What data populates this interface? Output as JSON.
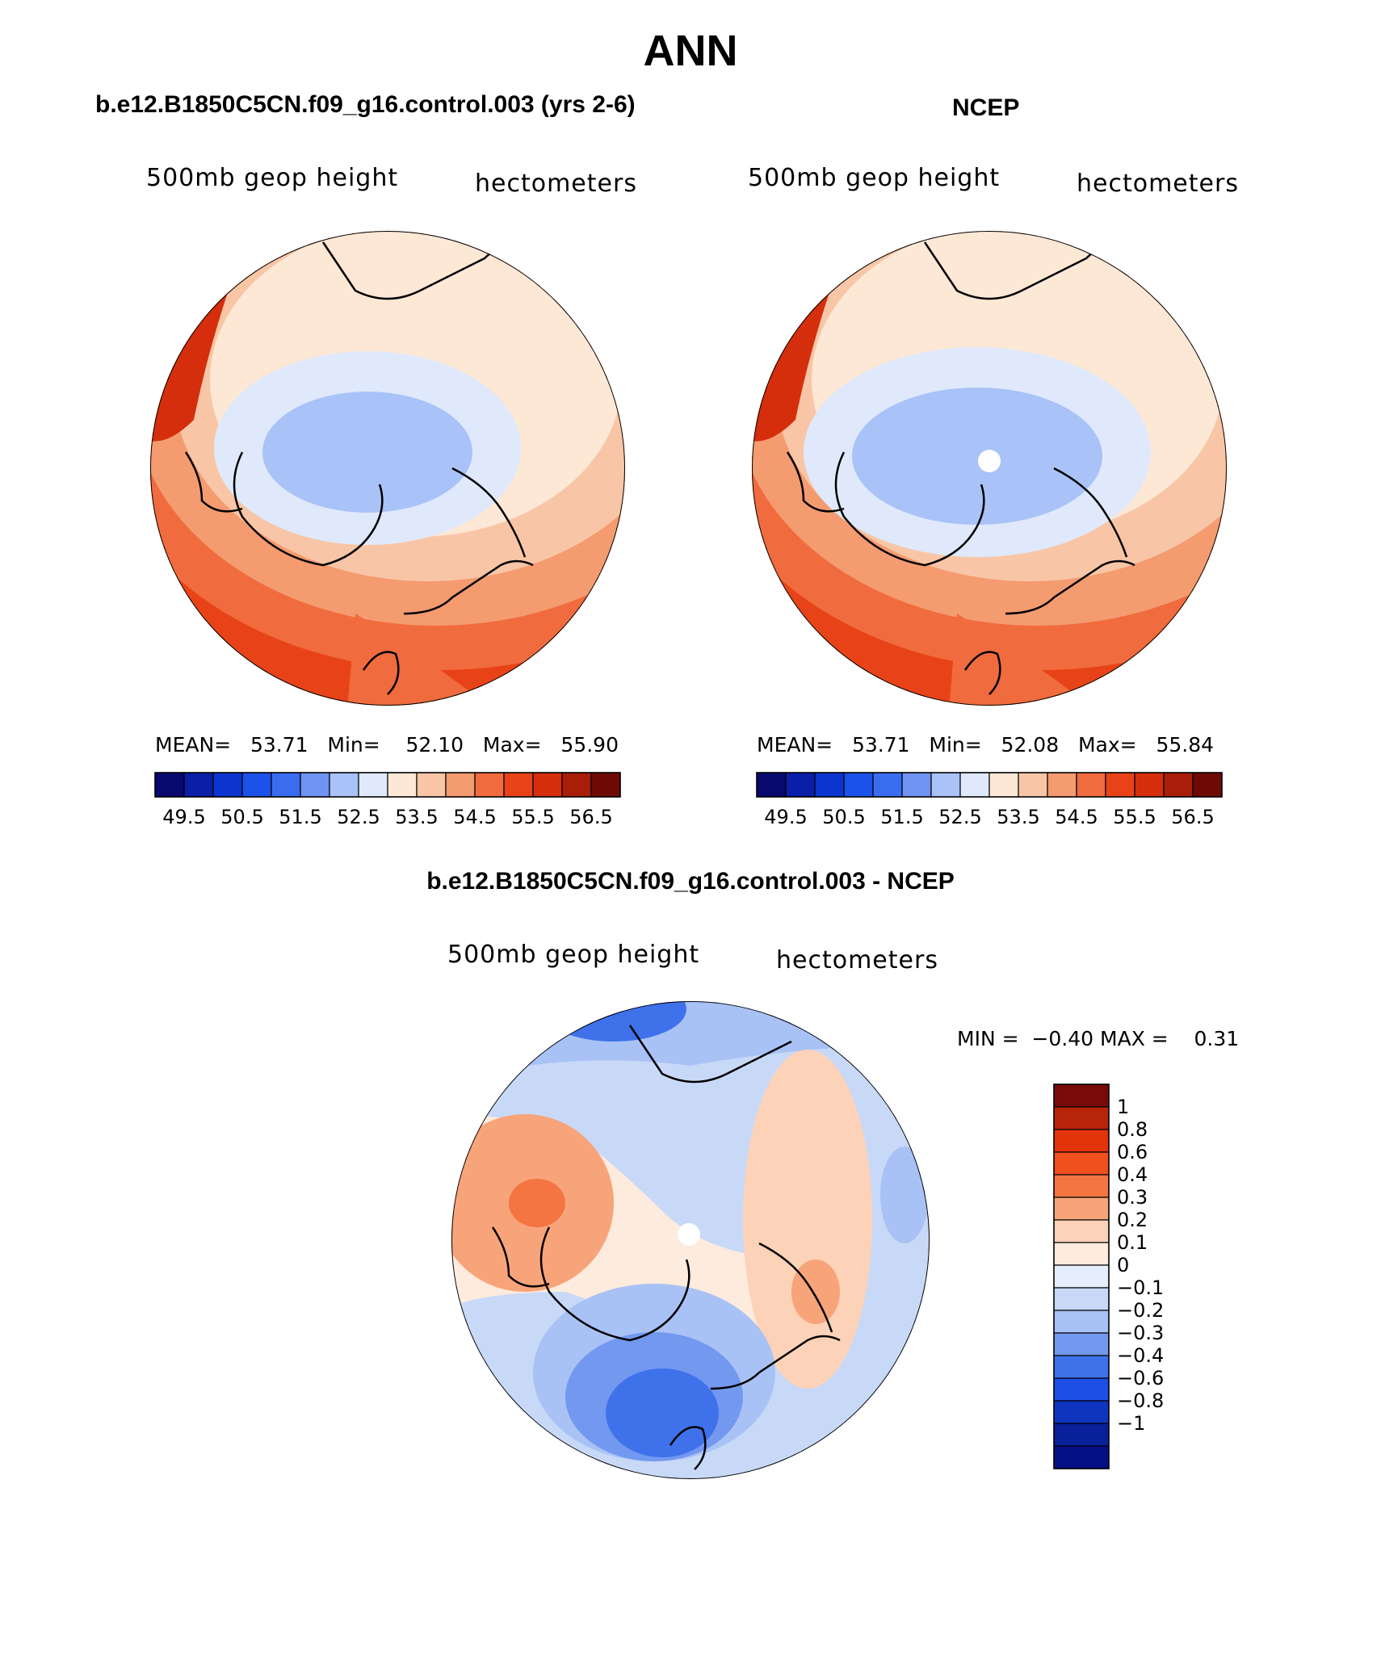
{
  "page_title": "ANN",
  "panels": [
    {
      "title": "b.e12.B1850C5CN.f09_g16.control.003 (yrs 2-6)",
      "left_label": "500mb geop height",
      "right_label": "hectometers",
      "stats": {
        "mean_label": "MEAN=",
        "mean": "53.71",
        "min_label": "Min=",
        "min": "52.10",
        "max_label": "Max=",
        "max": "55.90"
      }
    },
    {
      "title": "NCEP",
      "left_label": "500mb geop height",
      "right_label": "hectometers",
      "stats": {
        "mean_label": "MEAN=",
        "mean": "53.71",
        "min_label": "Min=",
        "min": "52.08",
        "max_label": "Max=",
        "max": "55.84"
      }
    },
    {
      "title": "b.e12.B1850C5CN.f09_g16.control.003 - NCEP",
      "left_label": "500mb geop height",
      "right_label": "hectometers",
      "stats": {
        "min_label": "MIN =",
        "min": "−0.40",
        "max_label": "MAX =",
        "max": "0.31"
      }
    }
  ],
  "abs_colorbar": {
    "colors": [
      "#08086e",
      "#0a1ea8",
      "#0c35cf",
      "#1a52ea",
      "#3a6cf0",
      "#6f93f2",
      "#a9c2f7",
      "#dfe9fb",
      "#fde8d6",
      "#f8c6a6",
      "#f49b70",
      "#f06b3d",
      "#e84318",
      "#d52e0c",
      "#a81e08",
      "#6e0a06"
    ],
    "labels": [
      "49.5",
      "50.5",
      "51.5",
      "52.5",
      "53.5",
      "54.5",
      "55.5",
      "56.5"
    ]
  },
  "diff_colorbar": {
    "colors": [
      "#7a0a0a",
      "#b8240a",
      "#e2340a",
      "#f0501c",
      "#f47442",
      "#f8a47a",
      "#fcd2b8",
      "#fdebdd",
      "#e4eefc",
      "#c8d9f8",
      "#a9c2f5",
      "#7398ef",
      "#3f72ea",
      "#1d4fe6",
      "#0f35c0",
      "#08209a",
      "#061086"
    ],
    "labels": [
      "1",
      "0.8",
      "0.6",
      "0.4",
      "0.3",
      "0.2",
      "0.1",
      "0",
      "−0.1",
      "−0.2",
      "−0.3",
      "−0.4",
      "−0.6",
      "−0.8",
      "−1"
    ]
  },
  "map_features": {
    "north_pole_hole": "white-dot",
    "outline": "coastlines"
  }
}
